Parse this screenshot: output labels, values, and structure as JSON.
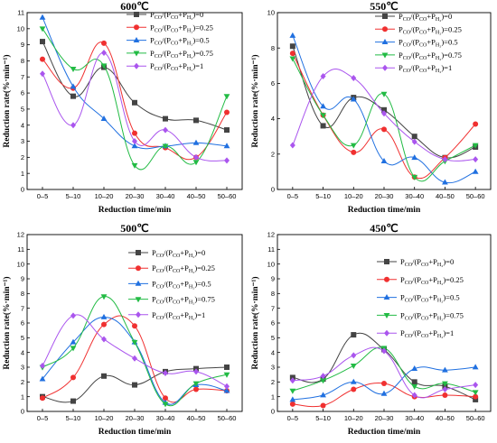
{
  "chart_data": [
    {
      "type": "line",
      "title": "600℃",
      "xlabel": "Reduction time/min",
      "ylabel": "Reduction rate(%·min⁻¹)",
      "categories": [
        "0–5",
        "5–10",
        "10–20",
        "20–30",
        "30–40",
        "40–50",
        "50–60"
      ],
      "ylim": [
        0,
        11
      ],
      "yticks": [
        0,
        1,
        2,
        3,
        4,
        5,
        6,
        7,
        8,
        9,
        10,
        11
      ],
      "legend_position": "top-right",
      "series": [
        {
          "name": "P_CO/(P_CO+P_H2)=0",
          "color": "#444444",
          "marker": "square",
          "values": [
            9.2,
            5.8,
            7.6,
            5.4,
            4.4,
            4.3,
            3.7
          ]
        },
        {
          "name": "P_CO/(P_CO+P_H2)=0.25",
          "color": "#f03030",
          "marker": "circle",
          "values": [
            8.1,
            6.3,
            9.1,
            3.5,
            2.6,
            2.0,
            4.8
          ]
        },
        {
          "name": "P_CO/(P_CO+P_H2)=0.5",
          "color": "#2070e0",
          "marker": "triangle-up",
          "values": [
            10.7,
            6.4,
            4.4,
            2.7,
            2.7,
            2.9,
            2.7
          ]
        },
        {
          "name": "P_CO/(P_CO+P_H2)=0.75",
          "color": "#22bb44",
          "marker": "triangle-down",
          "values": [
            10.0,
            7.5,
            7.7,
            1.5,
            2.7,
            1.7,
            5.8
          ]
        },
        {
          "name": "P_CO/(P_CO+P_H2)=1",
          "color": "#aa55ee",
          "marker": "diamond",
          "values": [
            7.2,
            4.0,
            8.5,
            3.0,
            3.7,
            2.0,
            1.8
          ]
        }
      ]
    },
    {
      "type": "line",
      "title": "550℃",
      "xlabel": "Reduction time/min",
      "ylabel": "Reduction rate(%·min⁻¹)",
      "categories": [
        "0–5",
        "5–10",
        "10–20",
        "20–30",
        "30–40",
        "40–50",
        "50–60"
      ],
      "ylim": [
        0,
        10
      ],
      "yticks": [
        0,
        2,
        4,
        6,
        8,
        10
      ],
      "legend_position": "top-right",
      "series": [
        {
          "name": "P_CO/(P_CO+P_H2)=0",
          "color": "#444444",
          "marker": "square",
          "values": [
            8.1,
            3.6,
            5.2,
            4.5,
            3.0,
            1.8,
            2.4
          ]
        },
        {
          "name": "P_CO/(P_CO+P_H2)=0.25",
          "color": "#f03030",
          "marker": "circle",
          "values": [
            7.7,
            4.2,
            2.1,
            3.4,
            0.7,
            1.8,
            3.7
          ]
        },
        {
          "name": "P_CO/(P_CO+P_H2)=0.5",
          "color": "#2070e0",
          "marker": "triangle-up",
          "values": [
            8.7,
            4.7,
            5.1,
            1.6,
            1.8,
            0.4,
            1.0
          ]
        },
        {
          "name": "P_CO/(P_CO+P_H2)=0.75",
          "color": "#22bb44",
          "marker": "triangle-down",
          "values": [
            7.4,
            4.2,
            2.5,
            5.4,
            0.7,
            1.6,
            2.5
          ]
        },
        {
          "name": "P_CO/(P_CO+P_H2)=1",
          "color": "#aa55ee",
          "marker": "diamond",
          "values": [
            2.5,
            6.4,
            6.3,
            4.3,
            2.7,
            1.7,
            1.7
          ]
        }
      ]
    },
    {
      "type": "line",
      "title": "500℃",
      "xlabel": "Reduction time/min",
      "ylabel": "Reduction rate(%·min⁻¹)",
      "categories": [
        "0–5",
        "5–10",
        "10–20",
        "20–30",
        "30–40",
        "40–50",
        "50–60"
      ],
      "ylim": [
        0,
        12
      ],
      "yticks": [
        0,
        1,
        2,
        3,
        4,
        5,
        6,
        7,
        8,
        9,
        10,
        11,
        12
      ],
      "legend_position": "top-right",
      "series": [
        {
          "name": "P_CO/(P_CO+P_H2)=0",
          "color": "#444444",
          "marker": "square",
          "values": [
            1.0,
            0.7,
            2.4,
            1.8,
            2.7,
            2.9,
            3.0
          ]
        },
        {
          "name": "P_CO/(P_CO+P_H2)=0.25",
          "color": "#f03030",
          "marker": "circle",
          "values": [
            0.9,
            2.3,
            5.9,
            5.8,
            0.9,
            1.5,
            1.4
          ]
        },
        {
          "name": "P_CO/(P_CO+P_H2)=0.5",
          "color": "#2070e0",
          "marker": "triangle-up",
          "values": [
            2.2,
            4.7,
            6.4,
            4.7,
            0.6,
            1.8,
            1.4
          ]
        },
        {
          "name": "P_CO/(P_CO+P_H2)=0.75",
          "color": "#22bb44",
          "marker": "triangle-down",
          "values": [
            3.0,
            4.3,
            7.8,
            4.7,
            0.5,
            1.9,
            2.5
          ]
        },
        {
          "name": "P_CO/(P_CO+P_H2)=1",
          "color": "#aa55ee",
          "marker": "diamond",
          "values": [
            3.1,
            6.5,
            4.9,
            3.6,
            2.6,
            2.7,
            1.7
          ]
        }
      ]
    },
    {
      "type": "line",
      "title": "450℃",
      "xlabel": "Reduction time/min",
      "ylabel": "Reduction rate(%·min⁻¹)",
      "categories": [
        "0–5",
        "5–10",
        "10–20",
        "20–30",
        "30–40",
        "40–50",
        "50–60"
      ],
      "ylim": [
        0,
        12
      ],
      "yticks": [
        0,
        1,
        2,
        3,
        4,
        5,
        6,
        7,
        8,
        9,
        10,
        11,
        12
      ],
      "legend_position": "top-right",
      "series": [
        {
          "name": "P_CO/(P_CO+P_H2)=0",
          "color": "#444444",
          "marker": "square",
          "values": [
            2.3,
            2.2,
            5.2,
            4.2,
            2.0,
            1.7,
            0.8
          ]
        },
        {
          "name": "P_CO/(P_CO+P_H2)=0.25",
          "color": "#f03030",
          "marker": "circle",
          "values": [
            0.5,
            0.4,
            1.5,
            1.9,
            1.0,
            1.1,
            1.0
          ]
        },
        {
          "name": "P_CO/(P_CO+P_H2)=0.5",
          "color": "#2070e0",
          "marker": "triangle-up",
          "values": [
            0.8,
            1.1,
            2.0,
            1.2,
            2.9,
            2.8,
            3.0
          ]
        },
        {
          "name": "P_CO/(P_CO+P_H2)=0.75",
          "color": "#22bb44",
          "marker": "triangle-down",
          "values": [
            1.4,
            2.1,
            3.1,
            4.3,
            1.7,
            1.9,
            1.3
          ]
        },
        {
          "name": "P_CO/(P_CO+P_H2)=1",
          "color": "#aa55ee",
          "marker": "diamond",
          "values": [
            2.1,
            2.4,
            3.8,
            4.1,
            1.1,
            1.5,
            1.8
          ]
        }
      ]
    }
  ]
}
